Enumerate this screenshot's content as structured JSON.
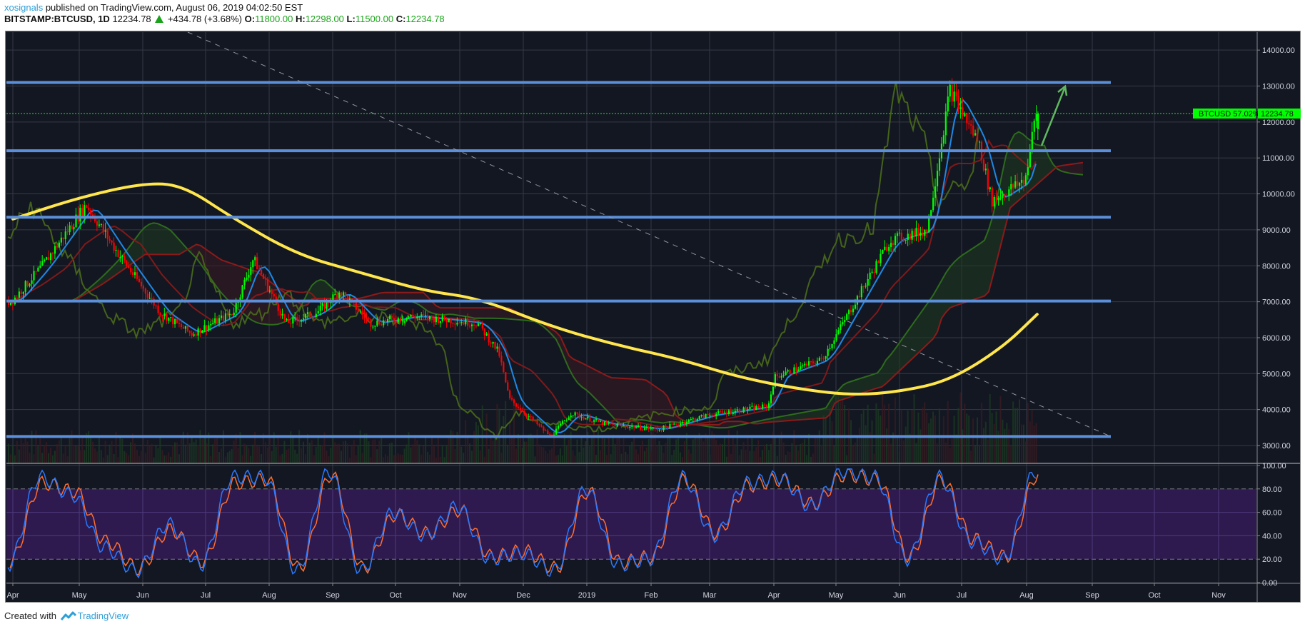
{
  "header": {
    "author": "xosignals",
    "published_text": " published on TradingView.com, August 06, 2019 04:02:50 EST",
    "symbol": "BITSTAMP:BTCUSD, 1D",
    "last_price": "12234.78",
    "change": "+434.78 (+3.68%)",
    "open_label": "O:",
    "open": "11800.00",
    "high_label": "H:",
    "high": "12298.00",
    "low_label": "L:",
    "low": "11500.00",
    "close_label": "C:",
    "close": "12234.78",
    "change_direction_icon": "triangle-up-icon"
  },
  "price_tag": {
    "symbol_label": "BTCUSD 57.02%",
    "value": "12234.78",
    "color": "#00ff00"
  },
  "footer": {
    "created_with": "Created with",
    "brand": "TradingView"
  },
  "colors": {
    "background": "#131722",
    "grid": "#363a45",
    "support_resistance": "#5b8fd9",
    "ma_yellow": "#ffe64d",
    "candle_up": "#00ff00",
    "candle_down": "#ff0000",
    "stoch_k": "#2979ff",
    "stoch_d": "#ff6d2e",
    "stoch_band": "#2e1a4f",
    "kijun_red": "#8c1a1a",
    "chikou_olive": "#4a6b1a",
    "tenkan_blue": "#1e88e5"
  },
  "chart_data": [
    {
      "type": "line",
      "title": "BITSTAMP:BTCUSD, 1D",
      "xlabel": "",
      "ylabel": "",
      "ylim": [
        2700,
        14400
      ],
      "grid": true,
      "y_ticks": [
        "14000.00",
        "13000.00",
        "12000.00",
        "11000.00",
        "10000.00",
        "9000.00",
        "8000.00",
        "7000.00",
        "6000.00",
        "5000.00",
        "4000.00",
        "3000.00"
      ],
      "x_ticks": [
        "Apr",
        "May",
        "Jun",
        "Jul",
        "Aug",
        "Sep",
        "Oct",
        "Nov",
        "Dec",
        "2019",
        "Feb",
        "Mar",
        "Apr",
        "May",
        "Jun",
        "Jul",
        "Aug",
        "Sep",
        "Oct",
        "Nov"
      ],
      "series": [
        {
          "name": "BTCUSD close (approx.)",
          "x": [
            "2018-04-01",
            "2018-04-15",
            "2018-05-05",
            "2018-05-20",
            "2018-06-10",
            "2018-06-25",
            "2018-07-15",
            "2018-07-25",
            "2018-08-10",
            "2018-08-25",
            "2018-09-05",
            "2018-09-20",
            "2018-10-10",
            "2018-11-10",
            "2018-11-20",
            "2018-11-25",
            "2018-12-15",
            "2018-12-25",
            "2019-01-10",
            "2019-02-05",
            "2019-03-01",
            "2019-03-30",
            "2019-04-02",
            "2019-04-25",
            "2019-05-12",
            "2019-05-28",
            "2019-06-15",
            "2019-06-26",
            "2019-07-10",
            "2019-07-16",
            "2019-08-01",
            "2019-08-06"
          ],
          "values": [
            7000,
            8000,
            9700,
            8400,
            6700,
            6100,
            6700,
            8200,
            6400,
            6700,
            7300,
            6400,
            6600,
            6400,
            5600,
            4300,
            3250,
            3900,
            3600,
            3450,
            3850,
            4100,
            4900,
            5400,
            7100,
            8700,
            9000,
            12900,
            11400,
            9800,
            10400,
            12234.78
          ]
        },
        {
          "name": "Moving average (yellow, ~200D)",
          "x": [
            "2018-04-01",
            "2018-05-01",
            "2018-06-01",
            "2018-06-20",
            "2018-07-15",
            "2018-08-15",
            "2018-09-15",
            "2018-10-15",
            "2018-11-10",
            "2018-12-15",
            "2019-01-15",
            "2019-02-15",
            "2019-03-15",
            "2019-04-15",
            "2019-05-10",
            "2019-06-01",
            "2019-06-25",
            "2019-07-20",
            "2019-08-06"
          ],
          "values": [
            9300,
            9900,
            10300,
            10250,
            9300,
            8300,
            7800,
            7300,
            7100,
            6300,
            5800,
            5400,
            4900,
            4550,
            4400,
            4500,
            4800,
            5700,
            6650
          ]
        },
        {
          "name": "Horizontal levels (drawn)",
          "values": [
            13100,
            11200,
            9350,
            7020,
            3250
          ]
        },
        {
          "name": "Descending trendline (dashed)",
          "x": [
            "2018-06-15",
            "2019-09-20"
          ],
          "values": [
            14400,
            3250
          ]
        }
      ],
      "annotations": [
        "Green arrow pointing up from ~11300 toward ~13000 in mid-Aug 2019",
        "Ichimoku cloud (red/green) with tenkan (blue) and kijun (red) lines",
        "Volume bars at bottom of price pane",
        "Last price line at 12234.78 (dotted green)"
      ]
    },
    {
      "type": "line",
      "title": "Stochastic RSI",
      "ylim": [
        0,
        100
      ],
      "y_ticks": [
        "100.00",
        "80.00",
        "60.00",
        "40.00",
        "20.00",
        "0.00"
      ],
      "band": [
        20,
        80
      ],
      "series": [
        {
          "name": "%K (blue)",
          "x": [
            "2018-04",
            "2018-04m",
            "2018-05",
            "2018-05m",
            "2018-06",
            "2018-06m",
            "2018-07",
            "2018-07m",
            "2018-08",
            "2018-08m",
            "2018-09",
            "2018-09m",
            "2018-10",
            "2018-10m",
            "2018-11",
            "2018-11m",
            "2018-12",
            "2018-12m",
            "2019-01",
            "2019-01m",
            "2019-02",
            "2019-02m",
            "2019-03",
            "2019-03m",
            "2019-04",
            "2019-04m",
            "2019-05",
            "2019-05m",
            "2019-06",
            "2019-06m",
            "2019-07",
            "2019-07m",
            "2019-08"
          ],
          "values": [
            15,
            90,
            75,
            30,
            10,
            50,
            15,
            90,
            90,
            10,
            95,
            10,
            60,
            40,
            65,
            20,
            25,
            10,
            80,
            15,
            20,
            90,
            40,
            85,
            90,
            65,
            95,
            90,
            20,
            90,
            35,
            20,
            95
          ]
        },
        {
          "name": "%D (orange)",
          "values": [
            18,
            85,
            78,
            35,
            12,
            45,
            18,
            85,
            88,
            12,
            92,
            12,
            58,
            42,
            62,
            22,
            27,
            12,
            78,
            17,
            22,
            88,
            42,
            83,
            88,
            67,
            92,
            88,
            22,
            88,
            37,
            22,
            92
          ]
        }
      ]
    }
  ]
}
